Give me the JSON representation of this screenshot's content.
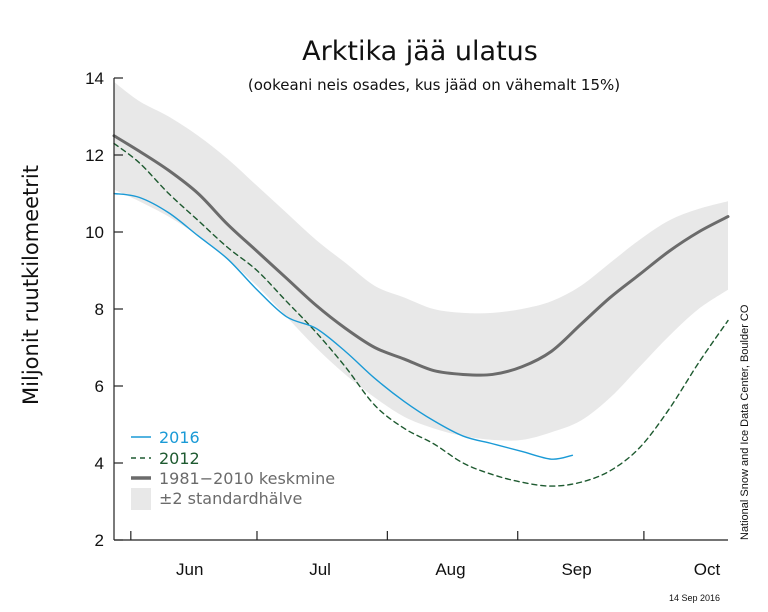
{
  "chart_data": {
    "type": "line",
    "title": "Arktika jää ulatus",
    "subtitle": "(ookeani neis osades, kus jääd on vähemalt 15%)",
    "ylabel": "Miljonit ruutkilomeetrit",
    "xlabel": "",
    "ylim": [
      2,
      14
    ],
    "yticks": [
      2,
      4,
      6,
      8,
      10,
      12,
      14
    ],
    "xlim": [
      "May 28",
      "Oct 21"
    ],
    "xtick_labels": [
      "Jun",
      "Jul",
      "Aug",
      "Sep",
      "Oct"
    ],
    "grid": false,
    "legend_position": "bottom-left",
    "band": {
      "name": "±2 standardhälve",
      "color": "#e8e8e8",
      "dates": [
        "May 28",
        "Jun 3",
        "Jun 10",
        "Jun 17",
        "Jun 24",
        "Jul 1",
        "Jul 8",
        "Jul 15",
        "Jul 22",
        "Jul 29",
        "Aug 5",
        "Aug 12",
        "Aug 19",
        "Aug 26",
        "Sep 2",
        "Sep 9",
        "Sep 16",
        "Sep 23",
        "Sep 30",
        "Oct 7",
        "Oct 14",
        "Oct 21"
      ],
      "upper": [
        13.9,
        13.4,
        13.0,
        12.5,
        11.9,
        11.2,
        10.5,
        9.8,
        9.2,
        8.6,
        8.3,
        8.0,
        7.9,
        7.9,
        8.0,
        8.2,
        8.6,
        9.2,
        9.8,
        10.3,
        10.6,
        10.8
      ],
      "lower": [
        11.1,
        10.8,
        10.4,
        9.9,
        9.3,
        8.6,
        7.8,
        7.0,
        6.3,
        5.7,
        5.2,
        4.9,
        4.7,
        4.6,
        4.6,
        4.8,
        5.1,
        5.7,
        6.5,
        7.3,
        8.0,
        8.5
      ]
    },
    "series": [
      {
        "name": "1981−2010 keskmine",
        "color": "#6b6b6b",
        "style": "solid-thick",
        "dates": [
          "May 28",
          "Jun 3",
          "Jun 10",
          "Jun 17",
          "Jun 24",
          "Jul 1",
          "Jul 8",
          "Jul 15",
          "Jul 22",
          "Jul 29",
          "Aug 5",
          "Aug 12",
          "Aug 19",
          "Aug 26",
          "Sep 2",
          "Sep 9",
          "Sep 16",
          "Sep 23",
          "Sep 30",
          "Oct 7",
          "Oct 14",
          "Oct 21"
        ],
        "values": [
          12.5,
          12.1,
          11.6,
          11.0,
          10.2,
          9.5,
          8.8,
          8.1,
          7.5,
          7.0,
          6.7,
          6.4,
          6.3,
          6.3,
          6.5,
          6.9,
          7.6,
          8.3,
          8.9,
          9.5,
          10.0,
          10.4
        ]
      },
      {
        "name": "2016",
        "color": "#1a9ad6",
        "style": "solid",
        "dates": [
          "May 28",
          "Jun 3",
          "Jun 10",
          "Jun 17",
          "Jun 24",
          "Jul 1",
          "Jul 8",
          "Jul 15",
          "Jul 22",
          "Jul 29",
          "Aug 5",
          "Aug 12",
          "Aug 19",
          "Aug 26",
          "Sep 2",
          "Sep 9",
          "Sep 14"
        ],
        "values": [
          11.0,
          10.9,
          10.5,
          9.9,
          9.3,
          8.5,
          7.8,
          7.5,
          6.9,
          6.2,
          5.6,
          5.1,
          4.7,
          4.5,
          4.3,
          4.1,
          4.2
        ]
      },
      {
        "name": "2012",
        "color": "#1e5a30",
        "style": "dashed",
        "dates": [
          "May 28",
          "Jun 3",
          "Jun 10",
          "Jun 17",
          "Jun 24",
          "Jul 1",
          "Jul 8",
          "Jul 15",
          "Jul 22",
          "Jul 29",
          "Aug 5",
          "Aug 12",
          "Aug 19",
          "Aug 26",
          "Sep 2",
          "Sep 9",
          "Sep 16",
          "Sep 23",
          "Sep 30",
          "Oct 7",
          "Oct 14",
          "Oct 21"
        ],
        "values": [
          12.3,
          11.8,
          11.0,
          10.3,
          9.6,
          9.0,
          8.2,
          7.4,
          6.5,
          5.5,
          4.9,
          4.5,
          4.0,
          3.7,
          3.5,
          3.4,
          3.5,
          3.8,
          4.4,
          5.4,
          6.6,
          7.7
        ]
      }
    ],
    "legend": [
      {
        "label": "2016",
        "color": "#1a9ad6"
      },
      {
        "label": "2012",
        "color": "#1e5a30"
      },
      {
        "label": "1981−2010 keskmine",
        "color": "#6b6b6b"
      },
      {
        "label": "±2 standardhälve",
        "color": "#6b6b6b"
      }
    ],
    "source_credit": "National Snow and Ice Data Center, Boulder CO",
    "date_stamp": "14 Sep 2016"
  }
}
